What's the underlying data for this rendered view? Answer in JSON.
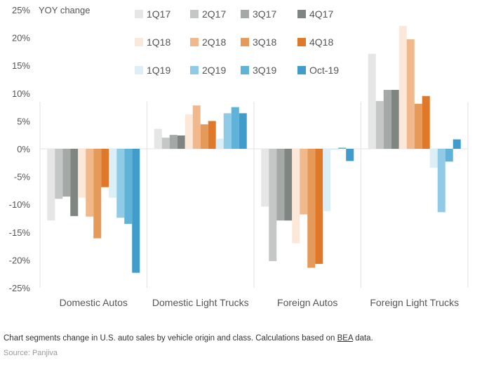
{
  "chart_data": {
    "type": "bar",
    "ylabel": "YOY change",
    "ylim": [
      -25,
      25
    ],
    "yticks": [
      "25%",
      "20%",
      "15%",
      "10%",
      "5%",
      "0%",
      "-5%",
      "-10%",
      "-15%",
      "-20%",
      "-25%"
    ],
    "legend_position": "top-center",
    "categories": [
      "Domestic Autos",
      "Domestic Light Trucks",
      "Foreign Autos",
      "Foreign Light Trucks"
    ],
    "series": [
      {
        "name": "1Q17",
        "color": "#e6e6e6",
        "values": [
          -12.9,
          3.6,
          -10.4,
          17.1
        ]
      },
      {
        "name": "2Q17",
        "color": "#c5c7c7",
        "values": [
          -9.0,
          2.0,
          -20.2,
          8.6
        ]
      },
      {
        "name": "3Q17",
        "color": "#a4a8a6",
        "values": [
          -8.6,
          2.5,
          -12.9,
          10.6
        ]
      },
      {
        "name": "4Q17",
        "color": "#7f8580",
        "values": [
          -12.1,
          2.4,
          -12.9,
          10.6
        ]
      },
      {
        "name": "1Q18",
        "color": "#fce8d8",
        "values": [
          -8.8,
          6.2,
          -17.0,
          22.1
        ]
      },
      {
        "name": "2Q18",
        "color": "#f1b88c",
        "values": [
          -12.2,
          7.8,
          -11.8,
          19.7
        ]
      },
      {
        "name": "3Q18",
        "color": "#e69a5a",
        "values": [
          -16.1,
          4.4,
          -21.4,
          8.1
        ]
      },
      {
        "name": "4Q18",
        "color": "#e0782a",
        "values": [
          -6.9,
          5.0,
          -20.7,
          9.5
        ]
      },
      {
        "name": "1Q19",
        "color": "#dceef6",
        "values": [
          -8.8,
          1.8,
          -11.2,
          -3.4
        ]
      },
      {
        "name": "2Q19",
        "color": "#8fcbe6",
        "values": [
          -12.4,
          6.4,
          0.0,
          -11.4
        ]
      },
      {
        "name": "3Q19",
        "color": "#5fb3d9",
        "values": [
          -13.5,
          7.5,
          0.2,
          -2.3
        ]
      },
      {
        "name": "Oct-19",
        "color": "#3f9ccb",
        "values": [
          -22.3,
          6.4,
          -2.2,
          1.7
        ]
      }
    ]
  },
  "footer": {
    "caption_before": "Chart segments change in U.S. auto sales by vehicle origin and class. Calculations based on ",
    "caption_link": "BEA",
    "caption_after": " data.",
    "source": "Source: Panjiva"
  }
}
